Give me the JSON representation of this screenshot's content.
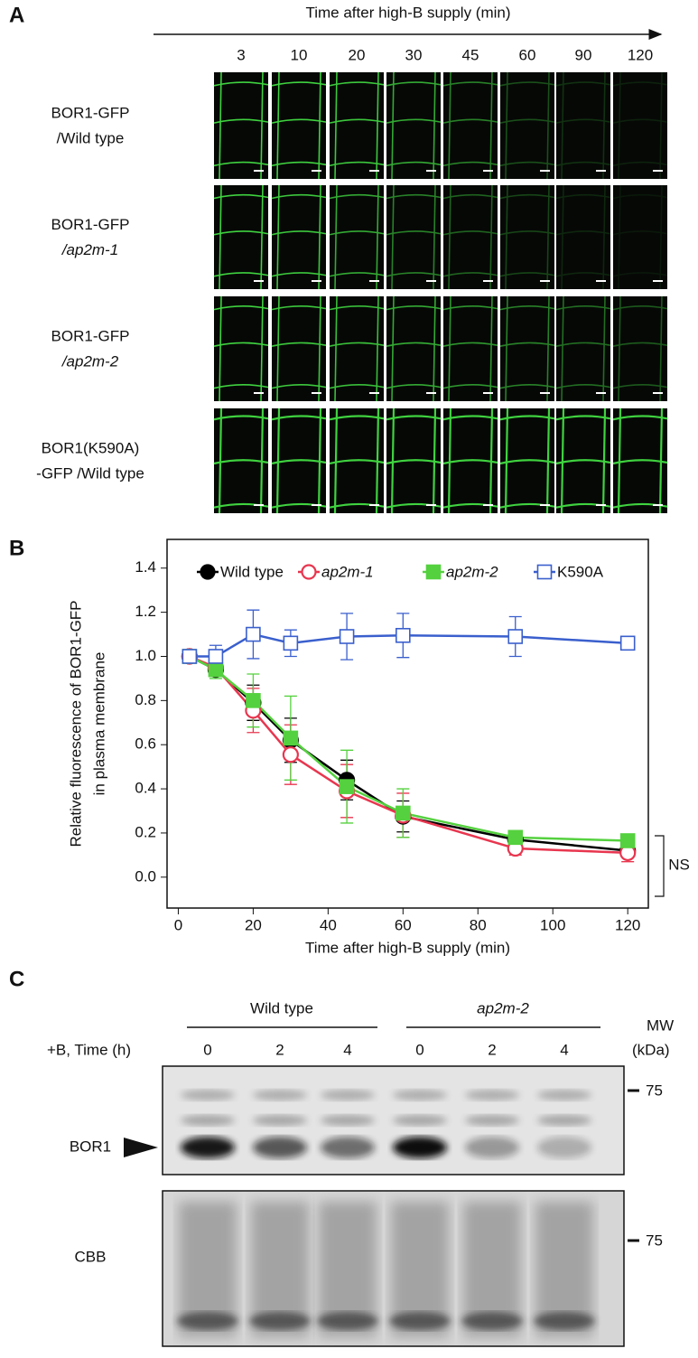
{
  "panel_a": {
    "label": "A",
    "title": "Time after high-B supply (min)",
    "times": [
      "3",
      "10",
      "20",
      "30",
      "45",
      "60",
      "90",
      "120"
    ],
    "rows": [
      {
        "line1": "BOR1-GFP",
        "line2": "/Wild type"
      },
      {
        "line1": "BOR1-GFP",
        "line2": "/ap2m-1"
      },
      {
        "line1": "BOR1-GFP",
        "line2": "/ap2m-2"
      },
      {
        "line1": "BOR1(K590A)",
        "line2": "-GFP /Wild type"
      }
    ]
  },
  "chart_data": {
    "type": "line",
    "panel_label": "B",
    "xlabel": "Time after high-B supply (min)",
    "ylabel": [
      "Relative fluorescence of BOR1-GFP",
      "in plasma membrane"
    ],
    "x": [
      3,
      10,
      20,
      30,
      45,
      60,
      90,
      120
    ],
    "xlim": [
      -3,
      125.5
    ],
    "xticks": [
      0,
      20,
      40,
      60,
      80,
      100,
      120
    ],
    "ylim": [
      -0.14,
      1.53
    ],
    "yticks": [
      {
        "value": 0,
        "label": "0.0"
      },
      0.2,
      0.4,
      0.6,
      0.8,
      {
        "value": 1,
        "label": "1.0"
      },
      1.2,
      1.4
    ],
    "legend": "top",
    "annotation": "NS",
    "series": [
      {
        "name": "Wild type",
        "color": "#000000",
        "marker": "circle",
        "filled": true,
        "values": [
          1.0,
          0.94,
          0.79,
          0.62,
          0.44,
          0.275,
          0.17,
          0.12
        ],
        "errors": [
          0,
          0.03,
          0.08,
          0.1,
          0.09,
          0.07,
          0.03,
          0.03
        ]
      },
      {
        "name": "ap2m-1",
        "color": "#e8364f",
        "marker": "circle",
        "filled": false,
        "values": [
          1.0,
          0.95,
          0.755,
          0.555,
          0.39,
          0.28,
          0.13,
          0.11
        ],
        "errors": [
          0,
          0.03,
          0.1,
          0.135,
          0.12,
          0.1,
          0.03,
          0.04
        ]
      },
      {
        "name": "ap2m-2",
        "color": "#55d13f",
        "marker": "square",
        "filled": true,
        "values": [
          1.0,
          0.94,
          0.8,
          0.63,
          0.41,
          0.29,
          0.18,
          0.165
        ],
        "errors": [
          0,
          0.04,
          0.12,
          0.19,
          0.165,
          0.11,
          0.03,
          0.02
        ]
      },
      {
        "name": "K590A",
        "color": "#3a5fcd",
        "marker": "square",
        "filled": false,
        "values": [
          1.0,
          1.0,
          1.1,
          1.06,
          1.09,
          1.095,
          1.09,
          1.06
        ],
        "errors": [
          0,
          0.05,
          0.11,
          0.06,
          0.105,
          0.1,
          0.09,
          0.03
        ]
      }
    ]
  },
  "panel_c": {
    "label": "C",
    "group1": "Wild type",
    "group2": "ap2m-2",
    "time_label": "+B, Time (h)",
    "lanes": [
      "0",
      "2",
      "4",
      "0",
      "2",
      "4"
    ],
    "mw": "MW",
    "mw_unit": "(kDa)",
    "marker_top": "75",
    "marker_bottom": "75",
    "band_label": "BOR1",
    "loading_label": "CBB"
  }
}
